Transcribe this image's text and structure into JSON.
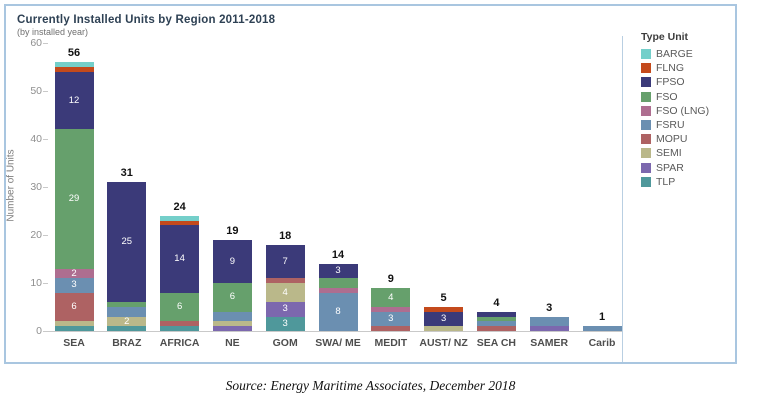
{
  "chart": {
    "title": "Currently Installed Units by Region 2011-2018",
    "subtitle": "(by installed year)",
    "y_axis_label": "Number of Units",
    "legend_title": "Type Unit",
    "source_caption": "Source: Energy Maritime Associates, December 2018"
  },
  "chart_data": {
    "type": "bar",
    "stacked": true,
    "title": "Currently Installed Units by Region 2011-2018",
    "subtitle": "(by installed year)",
    "xlabel": "",
    "ylabel": "Number of Units",
    "ylim": [
      0,
      60
    ],
    "yticks": [
      0,
      10,
      20,
      30,
      40,
      50,
      60
    ],
    "grid": false,
    "legend_position": "right",
    "legend_title": "Type Unit",
    "categories": [
      "SEA",
      "BRAZ",
      "AFRICA",
      "NE",
      "GOM",
      "SWA/ ME",
      "MEDIT",
      "AUST/ NZ",
      "SEA CH",
      "SAMER",
      "Carib"
    ],
    "totals": [
      56,
      31,
      24,
      19,
      18,
      14,
      9,
      5,
      4,
      3,
      1
    ],
    "series": [
      {
        "name": "BARGE",
        "color": "#74cfca",
        "values": [
          1,
          0,
          1,
          0,
          0,
          0,
          0,
          0,
          0,
          0,
          0
        ],
        "segment_labels": [
          null,
          null,
          null,
          null,
          null,
          null,
          null,
          null,
          null,
          null,
          null
        ]
      },
      {
        "name": "FLNG",
        "color": "#c44a1c",
        "values": [
          1,
          0,
          1,
          0,
          0,
          0,
          0,
          1,
          0,
          0,
          0
        ],
        "segment_labels": [
          null,
          null,
          null,
          null,
          null,
          null,
          null,
          null,
          null,
          null,
          null
        ]
      },
      {
        "name": "FPSO",
        "color": "#3b3a79",
        "values": [
          12,
          25,
          14,
          9,
          7,
          3,
          0,
          3,
          1,
          0,
          0
        ],
        "segment_labels": [
          "12",
          "25",
          "14",
          "9",
          "7",
          "3",
          null,
          "3",
          null,
          null,
          null
        ]
      },
      {
        "name": "FSO",
        "color": "#66a06c",
        "values": [
          29,
          1,
          6,
          6,
          0,
          2,
          4,
          0,
          1,
          0,
          0
        ],
        "segment_labels": [
          "29",
          null,
          "6",
          "6",
          null,
          null,
          "4",
          null,
          null,
          null,
          null
        ]
      },
      {
        "name": "FSO (LNG)",
        "color": "#ae6e90",
        "values": [
          2,
          0,
          0,
          0,
          0,
          1,
          1,
          0,
          0,
          0,
          0
        ],
        "segment_labels": [
          "2",
          null,
          null,
          null,
          null,
          null,
          null,
          null,
          null,
          null,
          null
        ]
      },
      {
        "name": "FSRU",
        "color": "#6b8fb1",
        "values": [
          3,
          2,
          0,
          2,
          0,
          8,
          3,
          0,
          1,
          2,
          1
        ],
        "segment_labels": [
          "3",
          null,
          null,
          null,
          null,
          "8",
          "3",
          null,
          null,
          null,
          null
        ]
      },
      {
        "name": "MOPU",
        "color": "#ae6263",
        "values": [
          6,
          0,
          1,
          0,
          1,
          0,
          1,
          0,
          1,
          0,
          0
        ],
        "segment_labels": [
          "6",
          null,
          null,
          null,
          null,
          null,
          null,
          null,
          null,
          null,
          null
        ]
      },
      {
        "name": "SEMI",
        "color": "#bab88a",
        "values": [
          1,
          2,
          0,
          1,
          4,
          0,
          0,
          1,
          0,
          0,
          0
        ],
        "segment_labels": [
          null,
          "2",
          null,
          null,
          "4",
          null,
          null,
          null,
          null,
          null,
          null
        ]
      },
      {
        "name": "SPAR",
        "color": "#7c68ae",
        "values": [
          0,
          0,
          0,
          1,
          3,
          0,
          0,
          0,
          0,
          1,
          0
        ],
        "segment_labels": [
          null,
          null,
          null,
          null,
          "3",
          null,
          null,
          null,
          null,
          null,
          null
        ]
      },
      {
        "name": "TLP",
        "color": "#4f989b",
        "values": [
          1,
          1,
          1,
          0,
          3,
          0,
          0,
          0,
          0,
          0,
          0
        ],
        "segment_labels": [
          null,
          null,
          null,
          null,
          "3",
          null,
          null,
          null,
          null,
          null,
          null
        ]
      }
    ],
    "source": "Source: Energy Maritime Associates, December 2018"
  }
}
